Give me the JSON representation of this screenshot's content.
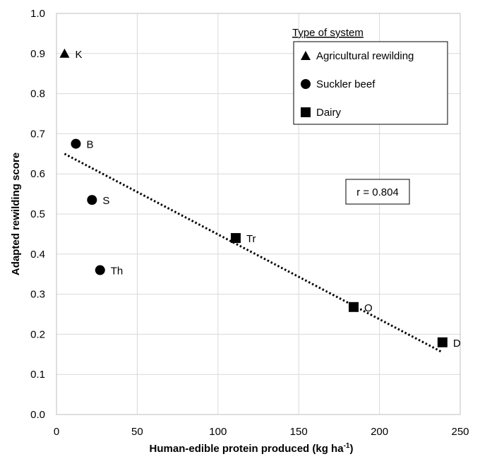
{
  "chart_data": {
    "type": "scatter",
    "xlabel": "Human-edible protein produced (kg ha",
    "xlabel_sup": "-1",
    "xlabel_close": ")",
    "ylabel": "Adapted rewilding score",
    "xlim": [
      0,
      250
    ],
    "ylim": [
      0,
      1.0
    ],
    "x_ticks": [
      "0",
      "50",
      "100",
      "150",
      "200",
      "250"
    ],
    "y_ticks": [
      "0.0",
      "0.1",
      "0.2",
      "0.3",
      "0.4",
      "0.5",
      "0.6",
      "0.7",
      "0.8",
      "0.9",
      "1.0"
    ],
    "grid": true,
    "legend": {
      "title": "Type of system",
      "placement": "top-right",
      "items": [
        {
          "name": "Agricultural rewilding",
          "marker": "triangle"
        },
        {
          "name": "Suckler beef",
          "marker": "circle"
        },
        {
          "name": "Dairy",
          "marker": "square"
        }
      ]
    },
    "series": [
      {
        "name": "Agricultural rewilding",
        "marker": "triangle",
        "points": [
          {
            "x": 5,
            "y": 0.9,
            "label": "K"
          }
        ]
      },
      {
        "name": "Suckler beef",
        "marker": "circle",
        "points": [
          {
            "x": 12,
            "y": 0.675,
            "label": "B"
          },
          {
            "x": 22,
            "y": 0.535,
            "label": "S"
          },
          {
            "x": 27,
            "y": 0.36,
            "label": "Th"
          }
        ]
      },
      {
        "name": "Dairy",
        "marker": "square",
        "points": [
          {
            "x": 111,
            "y": 0.44,
            "label": "Tr"
          },
          {
            "x": 184,
            "y": 0.268,
            "label": "O"
          },
          {
            "x": 239,
            "y": 0.18,
            "label": "D"
          }
        ]
      }
    ],
    "trendline": {
      "style": "dotted",
      "x": [
        5,
        239
      ],
      "y": [
        0.65,
        0.155
      ]
    },
    "annotation": "r = 0.804"
  }
}
